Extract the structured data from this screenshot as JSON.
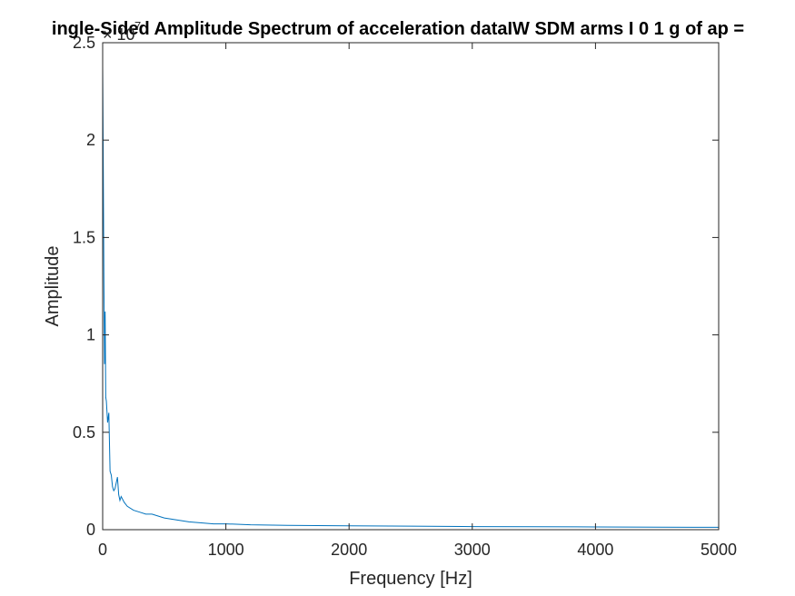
{
  "chart_data": {
    "type": "line",
    "title": "ingle-Sided Amplitude Spectrum of acceleration dataIW SDM arms I 0 1 g of ap =",
    "xlabel": "Frequency [Hz]",
    "ylabel": "Amplitude",
    "y_exponent_label": "× 10",
    "y_exponent_power": "7",
    "xlim": [
      0,
      5000
    ],
    "ylim": [
      0,
      2.5
    ],
    "x_ticks": [
      0,
      1000,
      2000,
      3000,
      4000,
      5000
    ],
    "x_tick_labels": [
      "0",
      "1000",
      "2000",
      "3000",
      "4000",
      "5000"
    ],
    "y_ticks": [
      0,
      0.5,
      1,
      1.5,
      2,
      2.5
    ],
    "y_tick_labels": [
      "0",
      "0.5",
      "1",
      "1.5",
      "2",
      "2.5"
    ],
    "grid": false,
    "series": [
      {
        "color": "#0072BD",
        "x": [
          0,
          5,
          10,
          15,
          20,
          25,
          30,
          40,
          50,
          60,
          70,
          80,
          90,
          100,
          110,
          120,
          130,
          140,
          150,
          175,
          200,
          250,
          300,
          350,
          400,
          450,
          500,
          600,
          700,
          800,
          900,
          1000,
          1200,
          1500,
          2000,
          2500,
          3000,
          3500,
          4000,
          4500,
          5000
        ],
        "y": [
          2.38,
          1.85,
          1.28,
          0.85,
          1.12,
          0.68,
          0.66,
          0.55,
          0.6,
          0.3,
          0.28,
          0.22,
          0.2,
          0.21,
          0.24,
          0.27,
          0.18,
          0.15,
          0.17,
          0.14,
          0.12,
          0.1,
          0.09,
          0.08,
          0.08,
          0.07,
          0.06,
          0.05,
          0.04,
          0.035,
          0.03,
          0.03,
          0.025,
          0.022,
          0.02,
          0.018,
          0.016,
          0.015,
          0.014,
          0.013,
          0.012
        ]
      }
    ]
  }
}
